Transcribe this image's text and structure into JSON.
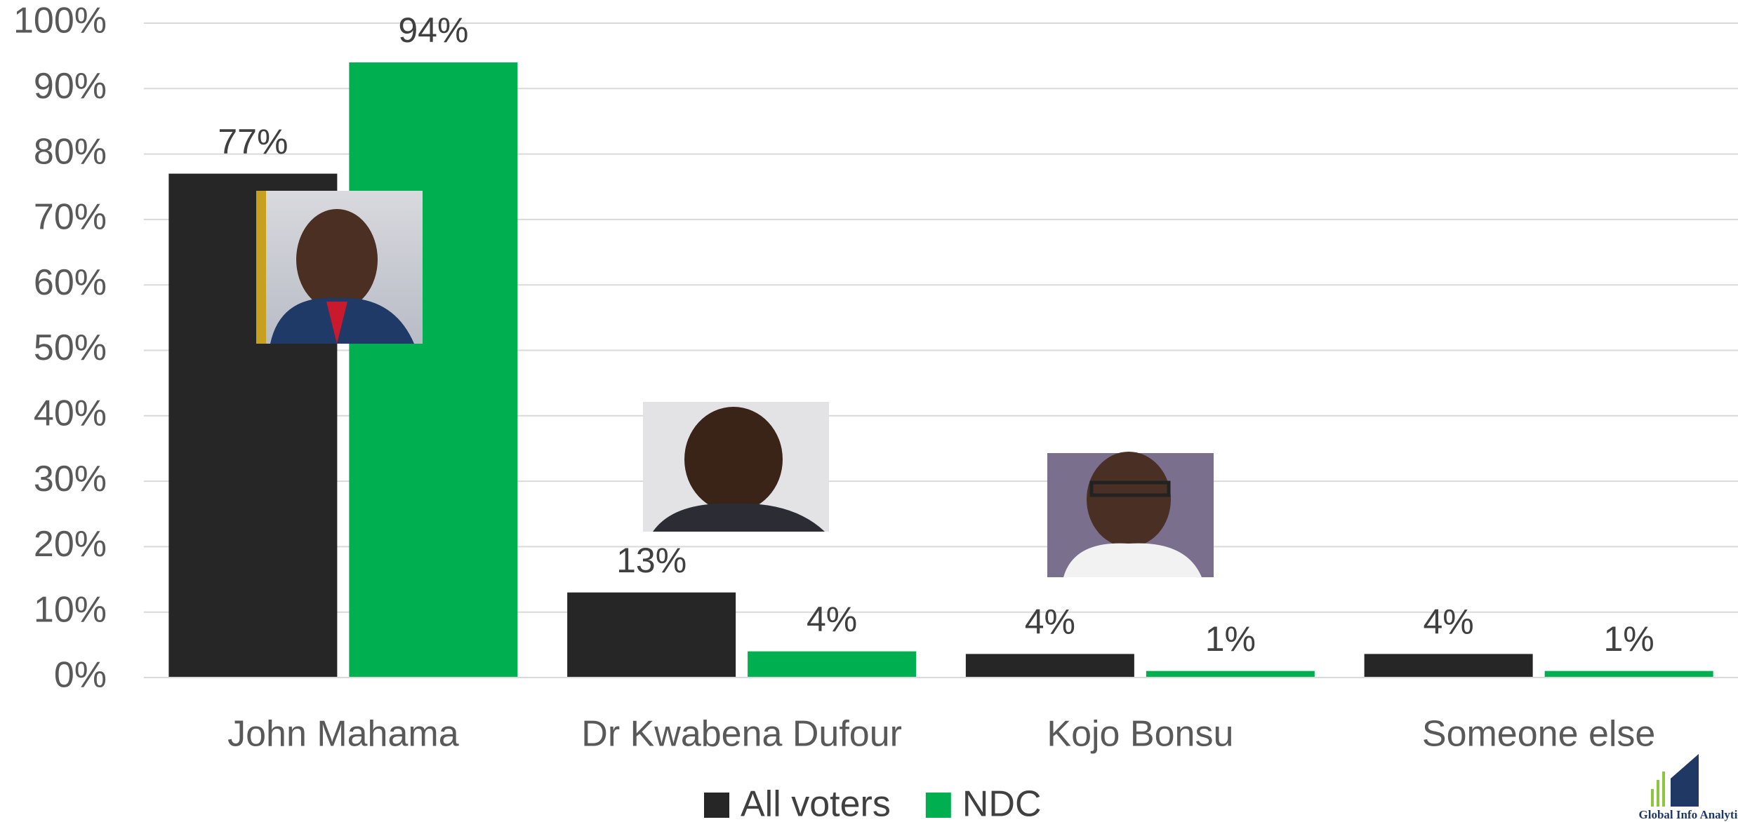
{
  "chart_data": {
    "type": "bar",
    "categories": [
      "John Mahama",
      "Dr Kwabena Dufour",
      "Kojo Bonsu",
      "Someone else"
    ],
    "series": [
      {
        "name": "All voters",
        "color": "#262626",
        "values": [
          77,
          13,
          3.6,
          3.6
        ],
        "value_labels": [
          "77%",
          "13%",
          "4%",
          "4%"
        ]
      },
      {
        "name": "NDC",
        "color": "#00b050",
        "values": [
          94,
          4,
          1,
          1
        ],
        "value_labels": [
          "94%",
          "4%",
          "1%",
          "1%"
        ]
      }
    ],
    "ylim": [
      0,
      100
    ],
    "yticks": [
      {
        "value": 0,
        "label": "0%"
      },
      {
        "value": 10,
        "label": "10%"
      },
      {
        "value": 20,
        "label": "20%"
      },
      {
        "value": 30,
        "label": "30%"
      },
      {
        "value": 40,
        "label": "40%"
      },
      {
        "value": 50,
        "label": "50%"
      },
      {
        "value": 60,
        "label": "60%"
      },
      {
        "value": 70,
        "label": "70%"
      },
      {
        "value": 80,
        "label": "80%"
      },
      {
        "value": 90,
        "label": "90%"
      },
      {
        "value": 100,
        "label": "100%"
      }
    ],
    "grid": true,
    "legend": "bottom",
    "watermark": "Global Info Analytics"
  }
}
